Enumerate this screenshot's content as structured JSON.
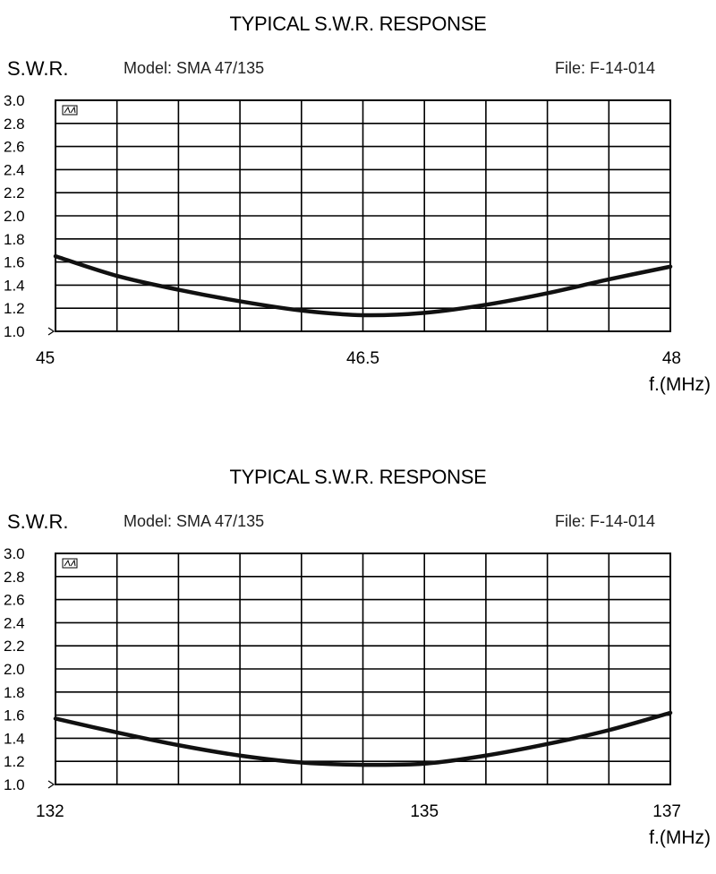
{
  "chart_data": [
    {
      "type": "line",
      "title": "TYPICAL S.W.R. RESPONSE",
      "ylabel": "S.W.R.",
      "model": "Model: SMA 47/135",
      "file": "File: F-14-014",
      "xlabel": "f.(MHz)",
      "xlim": [
        45,
        48
      ],
      "ylim": [
        1.0,
        3.0
      ],
      "x_tick_labels": [
        "45",
        "46.5",
        "48"
      ],
      "x_tick_values": [
        45,
        46.5,
        48
      ],
      "y_tick_labels": [
        "3.0",
        "2.8",
        "2.6",
        "2.4",
        "2.2",
        "2.0",
        "1.8",
        "1.6",
        "1.4",
        "1.2",
        "1.0"
      ],
      "y_tick_values": [
        3.0,
        2.8,
        2.6,
        2.4,
        2.2,
        2.0,
        1.8,
        1.6,
        1.4,
        1.2,
        1.0
      ],
      "x_divisions": 10,
      "grid": true,
      "series": [
        {
          "x": [
            45.0,
            45.3,
            45.6,
            45.9,
            46.2,
            46.5,
            46.8,
            47.1,
            47.4,
            47.7,
            48.0
          ],
          "y": [
            1.65,
            1.48,
            1.36,
            1.26,
            1.18,
            1.14,
            1.16,
            1.23,
            1.33,
            1.45,
            1.56
          ]
        }
      ]
    },
    {
      "type": "line",
      "title": "TYPICAL S.W.R. RESPONSE",
      "ylabel": "S.W.R.",
      "model": "Model: SMA 47/135",
      "file": "File: F-14-014",
      "xlabel": "f.(MHz)",
      "xlim": [
        132,
        137
      ],
      "ylim": [
        1.0,
        3.0
      ],
      "x_tick_labels": [
        "132",
        "135",
        "137"
      ],
      "x_tick_values": [
        132,
        135,
        137
      ],
      "y_tick_labels": [
        "3.0",
        "2.8",
        "2.6",
        "2.4",
        "2.2",
        "2.0",
        "1.8",
        "1.6",
        "1.4",
        "1.2",
        "1.0"
      ],
      "y_tick_values": [
        3.0,
        2.8,
        2.6,
        2.4,
        2.2,
        2.0,
        1.8,
        1.6,
        1.4,
        1.2,
        1.0
      ],
      "x_divisions": 10,
      "grid": true,
      "series": [
        {
          "x": [
            132.0,
            132.5,
            133.0,
            133.5,
            134.0,
            134.5,
            135.0,
            135.5,
            136.0,
            136.5,
            137.0
          ],
          "y": [
            1.57,
            1.45,
            1.34,
            1.25,
            1.19,
            1.17,
            1.18,
            1.25,
            1.35,
            1.47,
            1.62
          ]
        }
      ]
    }
  ]
}
